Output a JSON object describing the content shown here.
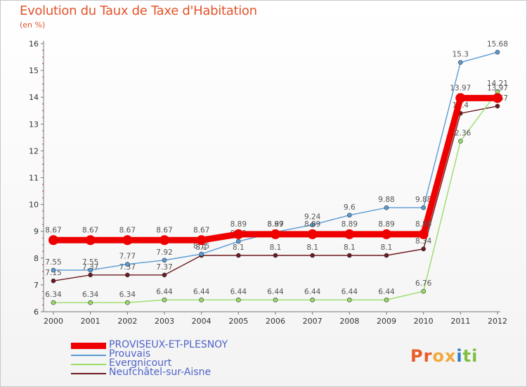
{
  "title": "Evolution du Taux de Taxe d'Habitation",
  "subtitle": "(en %)",
  "logo_text": "Proxiti",
  "chart_data": {
    "type": "line",
    "title": "Evolution du Taux de Taxe d'Habitation",
    "ylabel": "(en %)",
    "xlabel": "",
    "x": [
      2000,
      2001,
      2002,
      2003,
      2004,
      2005,
      2006,
      2007,
      2008,
      2009,
      2010,
      2011,
      2012
    ],
    "ylim": [
      6,
      16
    ],
    "yticks": [
      6,
      7,
      8,
      9,
      10,
      11,
      12,
      13,
      14,
      15,
      16
    ],
    "grid": false,
    "legend_position": "bottom-left",
    "series": [
      {
        "name": "Neufchâtel-sur-Aisne",
        "color": "#6b1a1f",
        "highlight": false,
        "values": [
          7.15,
          7.37,
          7.37,
          7.37,
          8.1,
          8.1,
          8.1,
          8.1,
          8.1,
          8.1,
          8.34,
          13.4,
          13.67
        ],
        "labels": [
          "7.15",
          "7.37",
          "7.37",
          "7.37",
          "8.1",
          "8.1",
          "8.1",
          "8.1",
          "8.1",
          "8.1",
          "8.34",
          "13.4",
          "13.67"
        ]
      },
      {
        "name": "Evergnicourt",
        "color": "#99dd66",
        "highlight": false,
        "values": [
          6.34,
          6.34,
          6.34,
          6.44,
          6.44,
          6.44,
          6.44,
          6.44,
          6.44,
          6.44,
          6.76,
          12.36,
          14.21
        ],
        "labels": [
          "6.34",
          "6.34",
          "6.34",
          "6.44",
          "6.44",
          "6.44",
          "6.44",
          "6.44",
          "6.44",
          "6.44",
          "6.76",
          "12.36",
          "14.21"
        ]
      },
      {
        "name": "Prouvais",
        "color": "#5b9bd5",
        "highlight": false,
        "values": [
          7.55,
          7.55,
          7.77,
          7.92,
          8.15,
          8.62,
          8.97,
          9.24,
          9.6,
          9.88,
          9.88,
          15.3,
          15.68
        ],
        "labels": [
          "7.55",
          "7.55",
          "7.77",
          "7.92",
          "8.15",
          "8.62",
          "8.97",
          "9.24",
          "9.6",
          "9.88",
          "9.88",
          "15.3",
          "15.68"
        ]
      },
      {
        "name": "PROVISEUX-ET-PLESNOY",
        "color": "#ee0000",
        "highlight": true,
        "values": [
          8.67,
          8.67,
          8.67,
          8.67,
          8.67,
          8.89,
          8.89,
          8.89,
          8.89,
          8.89,
          8.89,
          13.97,
          13.97
        ],
        "labels": [
          "8.67",
          "8.67",
          "8.67",
          "8.67",
          "8.67",
          "8.89",
          "8.89",
          "8.89",
          "8.89",
          "8.89",
          "8.89",
          "13.97",
          "13.97"
        ]
      }
    ],
    "legend": [
      "PROVISEUX-ET-PLESNOY",
      "Prouvais",
      "Evergnicourt",
      "Neufchâtel-sur-Aisne"
    ]
  },
  "colors": {
    "title": "#e2542b",
    "axis": "#777777",
    "tick_text": "#333333",
    "value_text": "#555555",
    "legend_text": "#4e62c8",
    "logo": [
      "#e85d2a",
      "#e85d2a",
      "#f2a93b",
      "#f2a93b",
      "#2e7fc2",
      "#7fbf3f",
      "#7fbf3f"
    ]
  }
}
